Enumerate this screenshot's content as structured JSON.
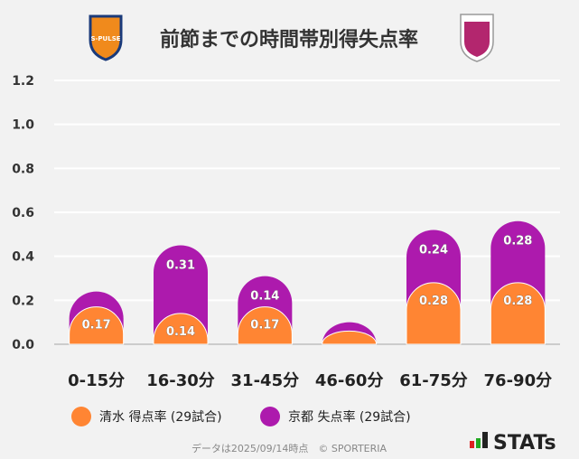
{
  "chart_data": {
    "type": "bar",
    "stacked": true,
    "title": "前節までの時間帯別得失点率",
    "categories": [
      "0-15分",
      "16-30分",
      "31-45分",
      "46-60分",
      "61-75分",
      "76-90分"
    ],
    "series": [
      {
        "name": "清水 得点率 (29試合)",
        "color": "#ff8533",
        "values": [
          0.17,
          0.14,
          0.17,
          0.06,
          0.28,
          0.28
        ],
        "labels": [
          "0.17",
          "0.14",
          "0.17",
          "",
          "0.28",
          "0.28"
        ]
      },
      {
        "name": "京都 失点率 (29試合)",
        "color": "#ad1aad",
        "values": [
          0.07,
          0.31,
          0.14,
          0.04,
          0.24,
          0.28
        ],
        "labels": [
          "",
          "0.31",
          "0.14",
          "",
          "0.24",
          "0.28"
        ]
      }
    ],
    "yticks": [
      "0.0",
      "0.2",
      "0.4",
      "0.6",
      "0.8",
      "1.0",
      "1.2"
    ],
    "ylim": [
      0,
      1.2
    ],
    "grid": true,
    "legend": "bottom"
  },
  "footer": {
    "note": "データは2025/09/14時点　© SPORTERIA",
    "brand": "STATs"
  },
  "logos": {
    "left": "S-PULSE",
    "right": "KYOTO SANGA"
  }
}
